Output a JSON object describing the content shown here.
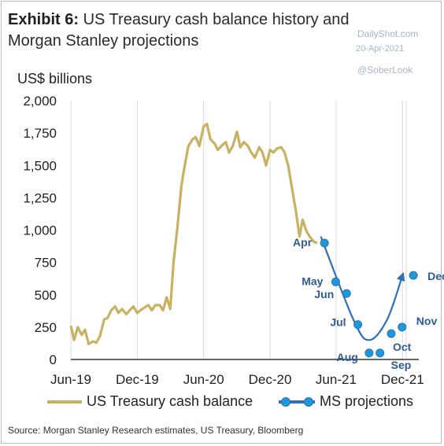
{
  "title": {
    "bold": "Exhibit 6:",
    "text": "US Treasury cash balance history and Morgan Stanley projections"
  },
  "watermark": {
    "site": "DailyShot.com",
    "date": "20-Apr-2021",
    "handle": "@SoberLook"
  },
  "source": "Source: Morgan Stanley Research estimates, US Treasury, Bloomberg",
  "colors": {
    "history": "#c9b162",
    "projection_line": "#2f6fb5",
    "projection_dot": "#1a9ad9",
    "label": "#2f5a96",
    "grid": "#d9d9d9"
  },
  "chart_data": {
    "type": "line",
    "ylabel": "US$ billions",
    "ylim": [
      0,
      2000
    ],
    "yticks": [
      0,
      250,
      500,
      750,
      1000,
      1250,
      1500,
      1750,
      2000
    ],
    "ytick_labels": [
      "0",
      "250",
      "500",
      "750",
      "1,000",
      "1,250",
      "1,500",
      "1,750",
      "2,000"
    ],
    "xlim": [
      "2019-06-01",
      "2022-01-15"
    ],
    "xticks": [
      "2019-06-01",
      "2019-12-01",
      "2020-06-01",
      "2020-12-01",
      "2021-06-01",
      "2021-12-01"
    ],
    "xtick_labels": [
      "Jun-19",
      "Dec-19",
      "Jun-20",
      "Dec-20",
      "Jun-21",
      "Dec-21"
    ],
    "grid": "vertical",
    "legend": "bottom",
    "series": [
      {
        "name": "US Treasury cash balance",
        "type": "line",
        "x": [
          "2019-06-01",
          "2019-06-10",
          "2019-06-20",
          "2019-07-01",
          "2019-07-10",
          "2019-07-20",
          "2019-08-01",
          "2019-08-10",
          "2019-08-20",
          "2019-09-01",
          "2019-09-10",
          "2019-09-20",
          "2019-10-01",
          "2019-10-10",
          "2019-10-20",
          "2019-11-01",
          "2019-11-10",
          "2019-11-20",
          "2019-12-01",
          "2019-12-10",
          "2019-12-20",
          "2020-01-01",
          "2020-01-10",
          "2020-01-20",
          "2020-02-01",
          "2020-02-10",
          "2020-02-20",
          "2020-03-01",
          "2020-03-10",
          "2020-03-20",
          "2020-04-01",
          "2020-04-10",
          "2020-04-20",
          "2020-05-01",
          "2020-05-10",
          "2020-05-20",
          "2020-06-01",
          "2020-06-10",
          "2020-06-20",
          "2020-07-01",
          "2020-07-10",
          "2020-07-20",
          "2020-08-01",
          "2020-08-10",
          "2020-08-20",
          "2020-09-01",
          "2020-09-10",
          "2020-09-20",
          "2020-10-01",
          "2020-10-10",
          "2020-10-20",
          "2020-11-01",
          "2020-11-10",
          "2020-11-20",
          "2020-12-01",
          "2020-12-10",
          "2020-12-20",
          "2021-01-01",
          "2021-01-10",
          "2021-01-20",
          "2021-02-01",
          "2021-02-10",
          "2021-02-20",
          "2021-03-01",
          "2021-03-10",
          "2021-03-20",
          "2021-04-01",
          "2021-04-10"
        ],
        "values": [
          260,
          150,
          250,
          190,
          230,
          120,
          140,
          130,
          180,
          310,
          320,
          380,
          410,
          360,
          390,
          350,
          380,
          410,
          360,
          380,
          400,
          420,
          380,
          420,
          420,
          380,
          480,
          390,
          750,
          1000,
          1350,
          1500,
          1650,
          1700,
          1720,
          1650,
          1800,
          1820,
          1700,
          1670,
          1620,
          1650,
          1680,
          1600,
          1650,
          1760,
          1640,
          1680,
          1650,
          1600,
          1560,
          1640,
          1600,
          1500,
          1620,
          1600,
          1630,
          1640,
          1600,
          1500,
          1300,
          1150,
          950,
          1080,
          1000,
          950,
          910,
          900
        ]
      },
      {
        "name": "MS projections",
        "type": "projection",
        "x": [
          "2021-04-30",
          "2021-05-31",
          "2021-06-30",
          "2021-07-31",
          "2021-08-31",
          "2021-09-30",
          "2021-10-31",
          "2021-11-30",
          "2021-12-31"
        ],
        "point_labels": [
          "Apr",
          "May",
          "Jun",
          "Jul",
          "Aug",
          "Sep",
          "Oct",
          "Nov",
          "Dec"
        ],
        "values": [
          900,
          600,
          510,
          270,
          50,
          50,
          200,
          250,
          650
        ],
        "trend": [
          {
            "x": "2021-04-20",
            "y": 950
          },
          {
            "x": "2021-07-20",
            "y": 300
          },
          {
            "x": "2021-09-01",
            "y": 150
          },
          {
            "x": "2021-10-20",
            "y": 310
          },
          {
            "x": "2021-12-01",
            "y": 650
          }
        ]
      }
    ]
  }
}
